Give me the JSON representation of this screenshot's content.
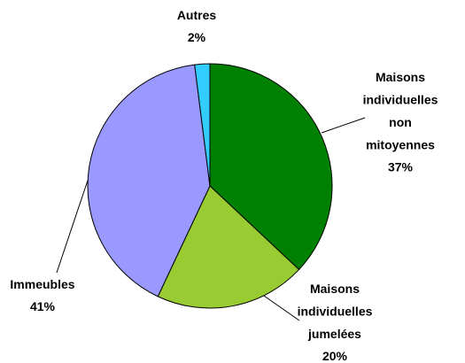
{
  "chart_data": {
    "type": "pie",
    "categories": [
      "Maisons individuelles non mitoyennes",
      "Maisons individuelles jumelées",
      "Immeubles",
      "Autres"
    ],
    "values": [
      37,
      20,
      41,
      2
    ],
    "value_labels": [
      "37%",
      "20%",
      "41%",
      "2%"
    ],
    "colors": [
      "#008000",
      "#99cc33",
      "#9999ff",
      "#33ccff"
    ]
  }
}
